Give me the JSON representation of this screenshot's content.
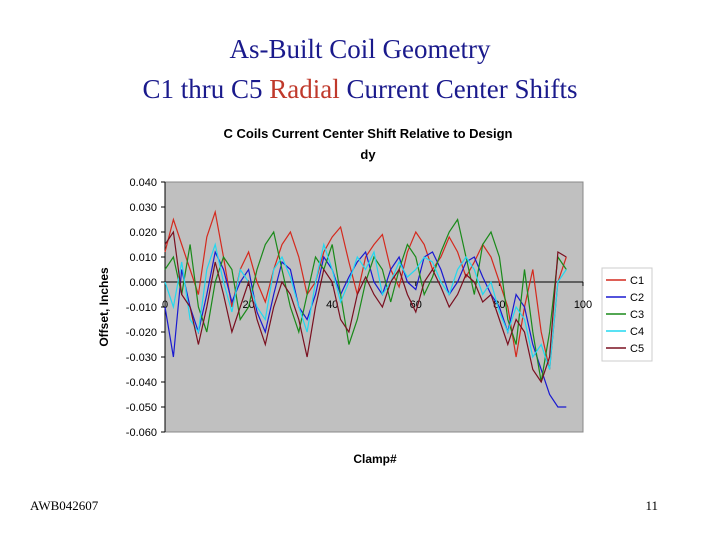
{
  "slide": {
    "title_line1": "As-Built Coil Geometry",
    "title_line2": [
      "C1 thru C5",
      "Radial",
      "Current Center Shifts"
    ],
    "footer_left": "AWB042607",
    "page_number": "11"
  },
  "chart_data": {
    "type": "line",
    "title": "C Coils Current Center Shift Relative to Design",
    "subtitle": "dy",
    "x_label": "Clamp#",
    "y_label": "Offset, Inches",
    "plot_background": "#c0c0c0",
    "legend": "right",
    "grid": false,
    "xlim": [
      0,
      100
    ],
    "xticks": [
      0,
      20,
      40,
      60,
      80,
      100
    ],
    "ylim": [
      -0.06,
      0.04
    ],
    "yticks": [
      {
        "value": 0.04,
        "label": "0.040"
      },
      {
        "value": 0.03,
        "label": "0.030"
      },
      {
        "value": 0.02,
        "label": "0.020"
      },
      {
        "value": 0.01,
        "label": "0.010"
      },
      {
        "value": 0,
        "label": "0.000"
      },
      {
        "value": -0.01,
        "label": "-0.010"
      },
      {
        "value": -0.02,
        "label": "-0.020"
      },
      {
        "value": -0.03,
        "label": "-0.030"
      },
      {
        "value": -0.04,
        "label": "-0.040"
      },
      {
        "value": -0.05,
        "label": "-0.050"
      },
      {
        "value": -0.06,
        "label": "-0.060"
      }
    ],
    "x": [
      0,
      2,
      4,
      6,
      8,
      10,
      12,
      14,
      16,
      18,
      20,
      22,
      24,
      26,
      28,
      30,
      32,
      34,
      36,
      38,
      40,
      42,
      44,
      46,
      48,
      50,
      52,
      54,
      56,
      58,
      60,
      62,
      64,
      66,
      68,
      70,
      72,
      74,
      76,
      78,
      80,
      82,
      84,
      86,
      88,
      90,
      92,
      94,
      96
    ],
    "series": [
      {
        "name": "C1",
        "color": "#d42a1e",
        "values": [
          0.012,
          0.025,
          0.015,
          0.005,
          -0.005,
          0.018,
          0.028,
          0.01,
          -0.01,
          0.005,
          0.012,
          0.0,
          -0.008,
          0.005,
          0.015,
          0.02,
          0.01,
          -0.005,
          0.0,
          0.012,
          0.018,
          0.022,
          0.008,
          -0.005,
          0.01,
          0.015,
          0.019,
          0.005,
          -0.002,
          0.012,
          0.02,
          0.015,
          0.005,
          0.01,
          0.018,
          0.012,
          0.002,
          0.008,
          0.015,
          0.01,
          0.0,
          -0.01,
          -0.03,
          -0.01,
          0.005,
          -0.02,
          -0.035,
          0.0,
          0.01
        ]
      },
      {
        "name": "C2",
        "color": "#1a1ad0",
        "values": [
          -0.01,
          -0.03,
          0.005,
          -0.01,
          -0.02,
          -0.005,
          0.012,
          0.005,
          -0.008,
          0.0,
          0.005,
          -0.012,
          -0.02,
          -0.005,
          0.008,
          0.005,
          -0.01,
          -0.015,
          -0.005,
          0.01,
          0.005,
          -0.005,
          0.002,
          0.008,
          0.012,
          0.0,
          -0.005,
          0.005,
          0.01,
          0.0,
          -0.003,
          0.01,
          0.012,
          0.005,
          -0.005,
          0.0,
          0.008,
          0.01,
          0.002,
          -0.005,
          -0.01,
          -0.02,
          -0.005,
          -0.01,
          -0.025,
          -0.035,
          -0.045,
          -0.05,
          -0.05
        ]
      },
      {
        "name": "C3",
        "color": "#1a8a1a",
        "values": [
          0.005,
          0.01,
          -0.005,
          0.015,
          -0.01,
          -0.02,
          0.0,
          0.01,
          0.005,
          -0.015,
          -0.01,
          0.005,
          0.015,
          0.02,
          0.005,
          -0.01,
          -0.02,
          -0.005,
          0.01,
          0.005,
          0.015,
          -0.005,
          -0.025,
          -0.015,
          0.0,
          0.01,
          0.005,
          -0.008,
          0.005,
          0.015,
          0.01,
          -0.005,
          0.002,
          0.012,
          0.02,
          0.025,
          0.01,
          -0.005,
          0.015,
          0.02,
          0.01,
          -0.015,
          -0.025,
          0.005,
          -0.02,
          -0.04,
          -0.02,
          0.01,
          0.005
        ]
      },
      {
        "name": "C4",
        "color": "#22d8f0",
        "values": [
          0.0,
          -0.01,
          0.008,
          -0.015,
          -0.02,
          0.005,
          0.015,
          0.0,
          -0.012,
          0.005,
          0.0,
          -0.01,
          -0.015,
          0.005,
          0.01,
          0.002,
          -0.01,
          -0.02,
          0.0,
          0.015,
          0.005,
          -0.008,
          0.0,
          0.01,
          0.005,
          0.012,
          -0.005,
          0.0,
          0.008,
          0.002,
          0.005,
          0.01,
          0.008,
          0.0,
          -0.005,
          0.005,
          0.01,
          0.005,
          -0.005,
          0.0,
          -0.012,
          -0.02,
          -0.01,
          -0.015,
          -0.03,
          -0.025,
          -0.035,
          0.0,
          0.005
        ]
      },
      {
        "name": "C5",
        "color": "#7a1020",
        "values": [
          0.015,
          0.02,
          -0.005,
          -0.01,
          -0.025,
          -0.01,
          0.008,
          -0.005,
          -0.02,
          -0.01,
          0.0,
          -0.015,
          -0.025,
          -0.01,
          0.0,
          -0.005,
          -0.015,
          -0.03,
          -0.01,
          0.005,
          0.0,
          -0.015,
          -0.02,
          -0.005,
          0.002,
          -0.005,
          -0.01,
          0.0,
          0.005,
          -0.005,
          -0.012,
          0.0,
          0.005,
          -0.002,
          -0.01,
          -0.005,
          0.003,
          0.0,
          -0.008,
          -0.005,
          -0.015,
          -0.025,
          -0.015,
          -0.02,
          -0.035,
          -0.04,
          -0.03,
          0.012,
          0.01
        ]
      }
    ]
  }
}
